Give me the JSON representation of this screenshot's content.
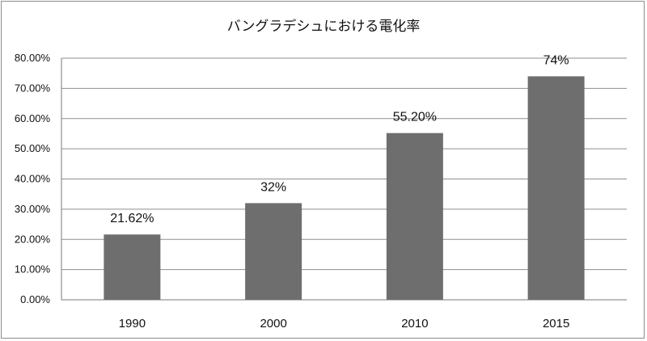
{
  "chart_data": {
    "type": "bar",
    "title": "バングラデシュにおける電化率",
    "categories": [
      "1990",
      "2000",
      "2010",
      "2015"
    ],
    "values": [
      21.62,
      32,
      55.2,
      74
    ],
    "data_labels": [
      "21.62%",
      "32%",
      "55.20%",
      "74%"
    ],
    "y_tick_labels": [
      "0.00%",
      "10.00%",
      "20.00%",
      "30.00%",
      "40.00%",
      "50.00%",
      "60.00%",
      "70.00%",
      "80.00%"
    ],
    "y_ticks": [
      0,
      10,
      20,
      30,
      40,
      50,
      60,
      70,
      80
    ],
    "ylim": [
      0,
      80
    ],
    "grid": true,
    "legend": "none",
    "bar_color": "#6e6e6e"
  }
}
